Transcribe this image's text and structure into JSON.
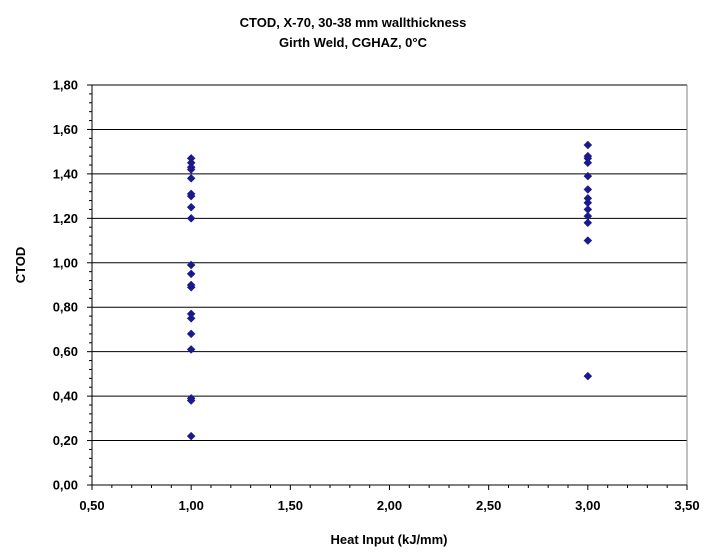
{
  "chart_data": {
    "type": "scatter",
    "title": "CTOD, X-70, 30-38 mm wallthickness",
    "subtitle": "Girth Weld, CGHAZ, 0°C",
    "xlabel": "Heat Input (kJ/mm)",
    "ylabel": "CTOD",
    "xlim": [
      0.5,
      3.5
    ],
    "ylim": [
      0.0,
      1.8
    ],
    "x_ticks": [
      "0,50",
      "1,00",
      "1,50",
      "2,00",
      "2,50",
      "3,00",
      "3,50"
    ],
    "y_ticks": [
      "0,00",
      "0,20",
      "0,40",
      "0,60",
      "0,80",
      "1,00",
      "1,20",
      "1,40",
      "1,60",
      "1,80"
    ],
    "grid": "horizontal",
    "marker": "diamond",
    "marker_color": "#1a1a8c",
    "series": [
      {
        "points": [
          {
            "x": 1.0,
            "y": 1.47
          },
          {
            "x": 1.0,
            "y": 1.45
          },
          {
            "x": 1.0,
            "y": 1.43
          },
          {
            "x": 1.0,
            "y": 1.42
          },
          {
            "x": 1.0,
            "y": 1.38
          },
          {
            "x": 1.0,
            "y": 1.31
          },
          {
            "x": 1.0,
            "y": 1.3
          },
          {
            "x": 1.0,
            "y": 1.25
          },
          {
            "x": 1.0,
            "y": 1.2
          },
          {
            "x": 1.0,
            "y": 0.99
          },
          {
            "x": 1.0,
            "y": 0.95
          },
          {
            "x": 1.0,
            "y": 0.9
          },
          {
            "x": 1.0,
            "y": 0.89
          },
          {
            "x": 1.0,
            "y": 0.77
          },
          {
            "x": 1.0,
            "y": 0.75
          },
          {
            "x": 1.0,
            "y": 0.68
          },
          {
            "x": 1.0,
            "y": 0.61
          },
          {
            "x": 1.0,
            "y": 0.39
          },
          {
            "x": 1.0,
            "y": 0.38
          },
          {
            "x": 1.0,
            "y": 0.22
          },
          {
            "x": 3.0,
            "y": 1.53
          },
          {
            "x": 3.0,
            "y": 1.48
          },
          {
            "x": 3.0,
            "y": 1.47
          },
          {
            "x": 3.0,
            "y": 1.45
          },
          {
            "x": 3.0,
            "y": 1.39
          },
          {
            "x": 3.0,
            "y": 1.33
          },
          {
            "x": 3.0,
            "y": 1.29
          },
          {
            "x": 3.0,
            "y": 1.27
          },
          {
            "x": 3.0,
            "y": 1.24
          },
          {
            "x": 3.0,
            "y": 1.21
          },
          {
            "x": 3.0,
            "y": 1.18
          },
          {
            "x": 3.0,
            "y": 1.1
          },
          {
            "x": 3.0,
            "y": 0.49
          }
        ]
      }
    ]
  }
}
